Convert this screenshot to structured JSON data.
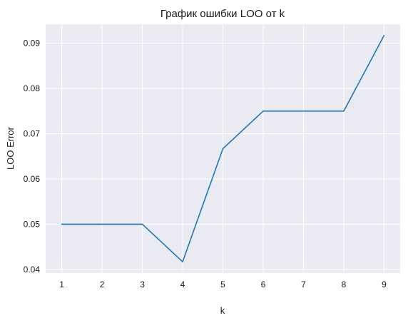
{
  "chart_data": {
    "type": "line",
    "title": "График ошибки LOO от k",
    "xlabel": "k",
    "ylabel": "LOO Error",
    "x": [
      1,
      2,
      3,
      4,
      5,
      6,
      7,
      8,
      9
    ],
    "series": [
      {
        "values": [
          0.05,
          0.05,
          0.05,
          0.0417,
          0.0667,
          0.075,
          0.075,
          0.075,
          0.0917
        ]
      }
    ],
    "x_ticks": [
      "1",
      "2",
      "3",
      "4",
      "5",
      "6",
      "7",
      "8",
      "9"
    ],
    "y_ticks": [
      "0.04",
      "0.05",
      "0.06",
      "0.07",
      "0.08",
      "0.09"
    ],
    "x_tick_values": [
      1,
      2,
      3,
      4,
      5,
      6,
      7,
      8,
      9
    ],
    "y_tick_values": [
      0.04,
      0.05,
      0.06,
      0.07,
      0.08,
      0.09
    ],
    "xlim": [
      0.6,
      9.4
    ],
    "ylim": [
      0.0392,
      0.0942
    ],
    "grid": true,
    "background": "#eaeaf2",
    "line_color": "#1f77b4"
  }
}
